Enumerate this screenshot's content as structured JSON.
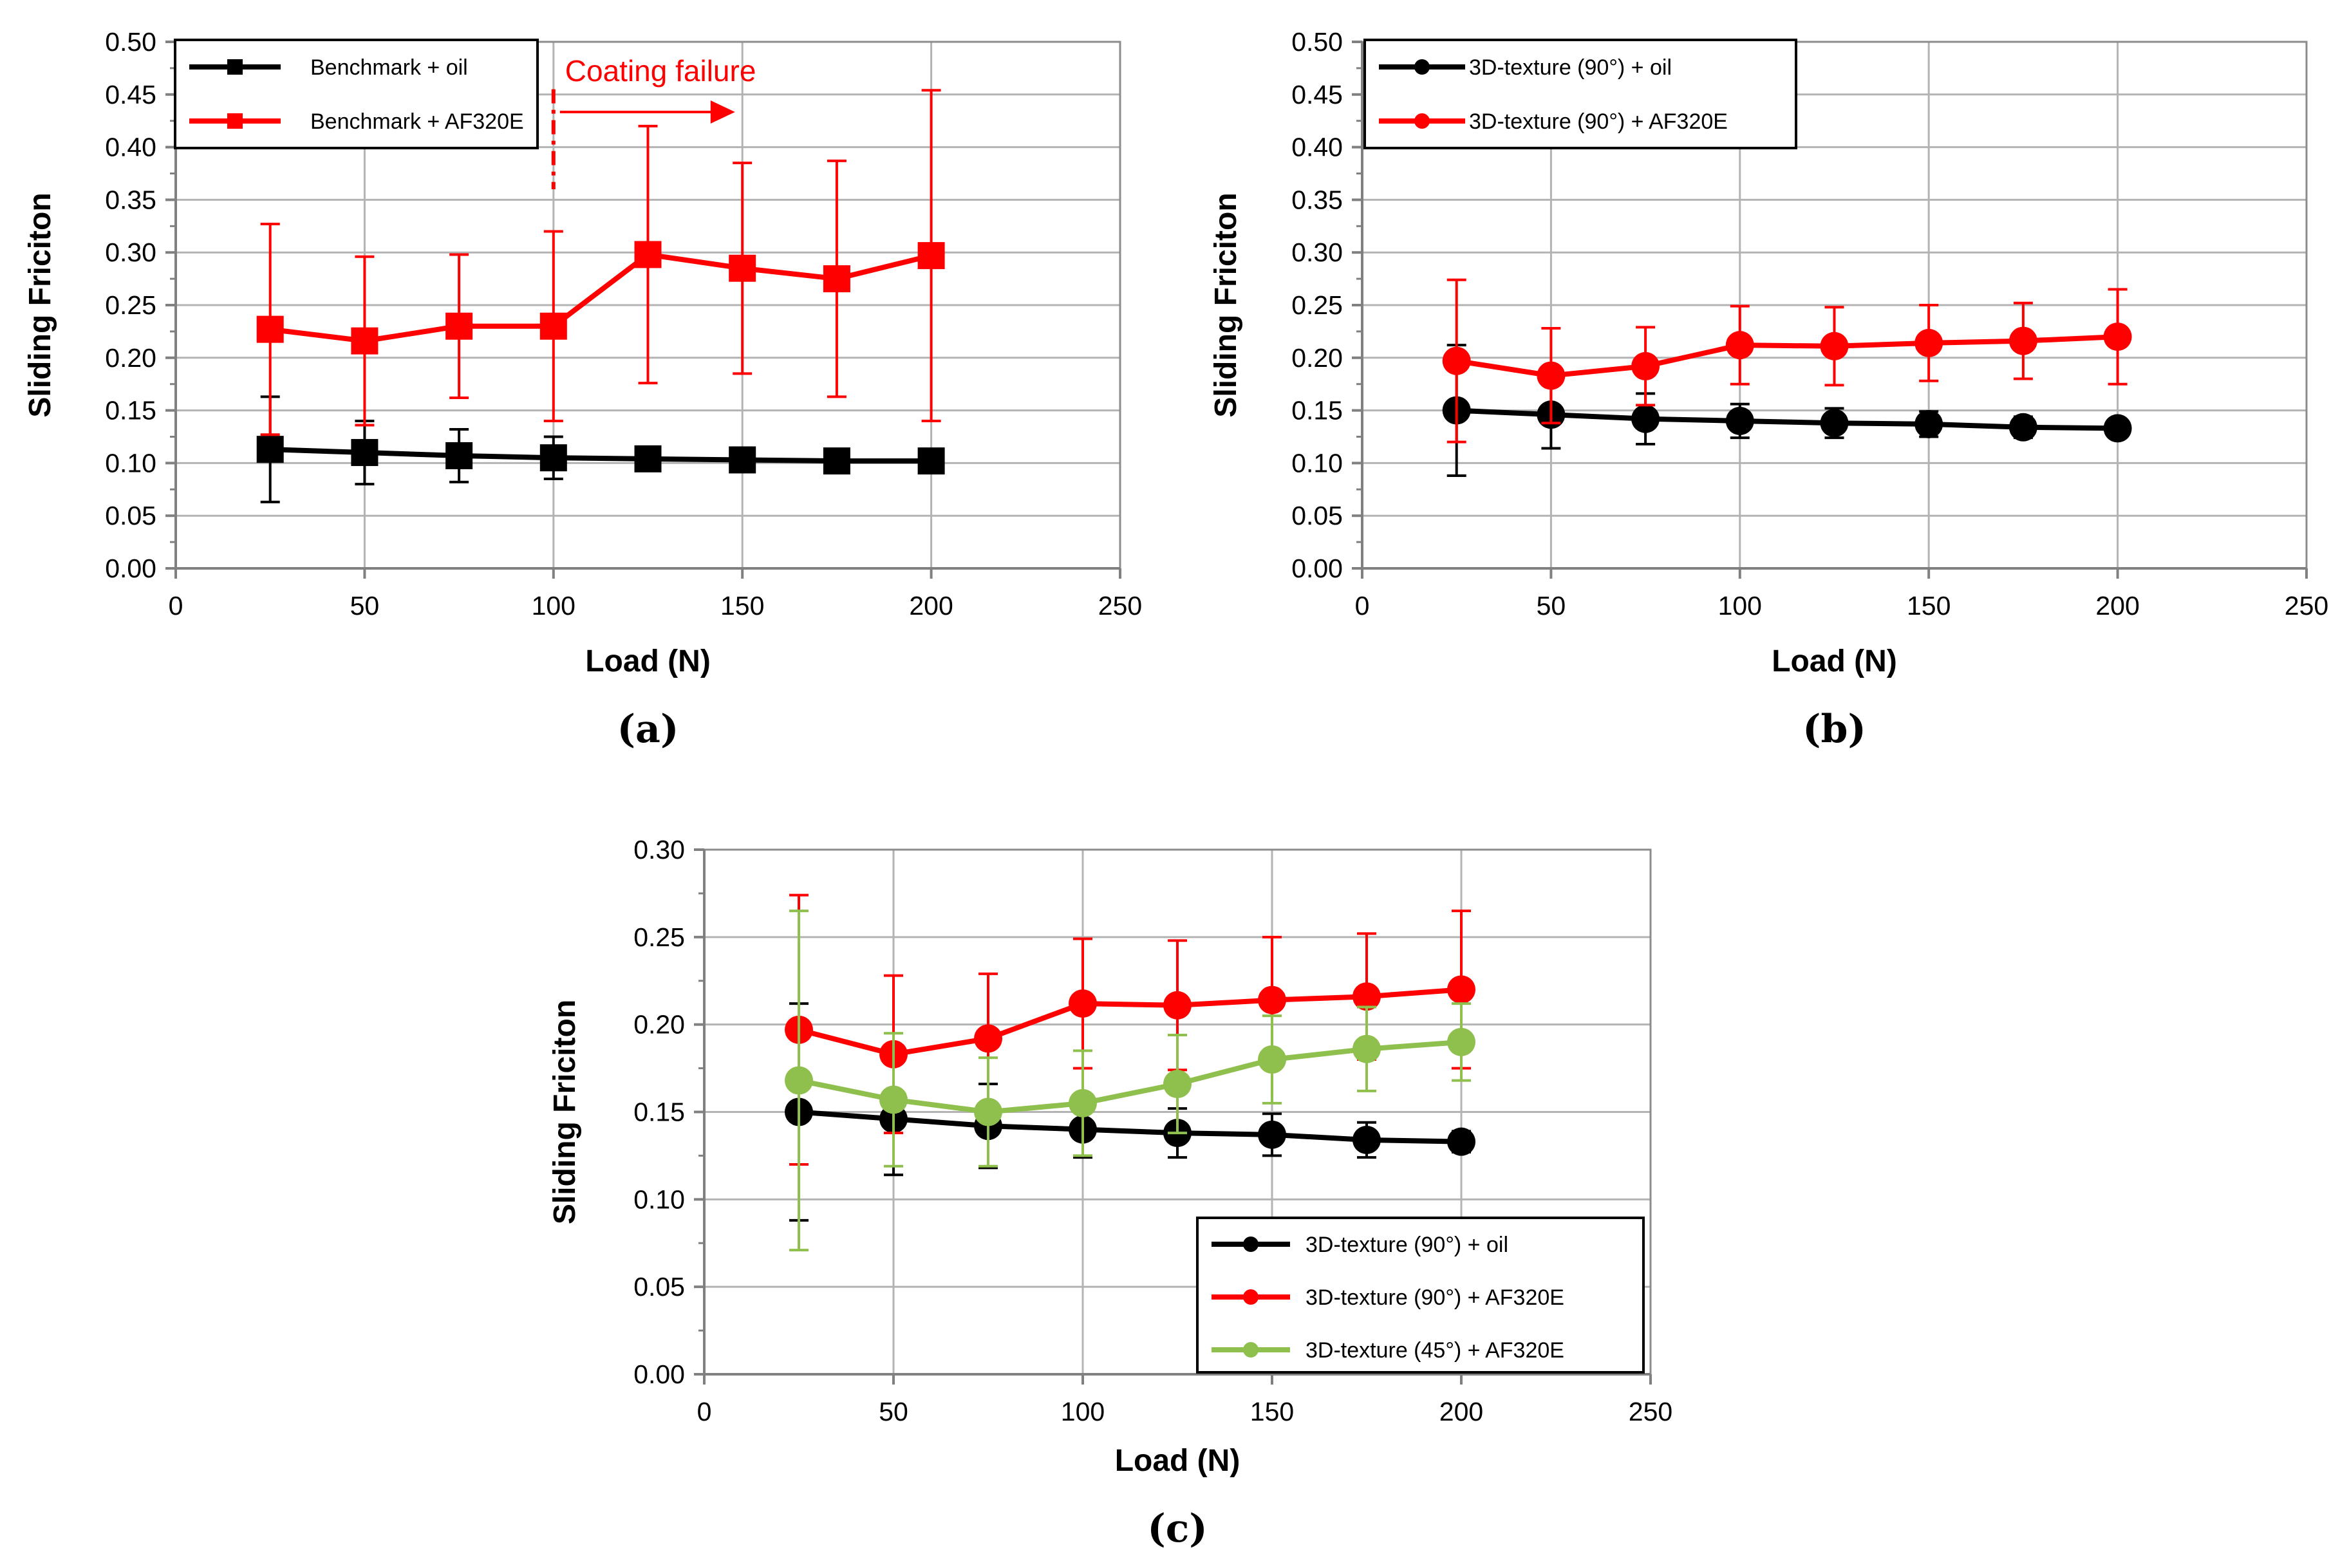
{
  "chart_data": [
    {
      "id": "a",
      "type": "line",
      "panel_label": "(a)",
      "xlabel": "Load (N)",
      "ylabel": "Sliding Friciton",
      "xlim": [
        0,
        250
      ],
      "ylim": [
        0,
        0.5
      ],
      "xticks": [
        0,
        50,
        100,
        150,
        200,
        250
      ],
      "yticks": [
        0.0,
        0.05,
        0.1,
        0.15,
        0.2,
        0.25,
        0.3,
        0.35,
        0.4,
        0.45,
        0.5
      ],
      "grid": true,
      "legend": "top-left",
      "annotation": {
        "text": "Coating failure",
        "x": 100
      },
      "x": [
        25,
        50,
        75,
        100,
        125,
        150,
        175,
        200
      ],
      "series": [
        {
          "name": "Benchmark + oil",
          "color": "#000000",
          "marker": "square",
          "values": [
            0.113,
            0.11,
            0.107,
            0.105,
            0.104,
            0.103,
            0.102,
            0.102
          ],
          "err": [
            0.05,
            0.03,
            0.025,
            0.02,
            0.01,
            0.01,
            0.01,
            0.005
          ]
        },
        {
          "name": "Benchmark + AF320E",
          "color": "#ff0000",
          "marker": "square",
          "values": [
            0.227,
            0.216,
            0.23,
            0.23,
            0.298,
            0.285,
            0.275,
            0.297
          ],
          "err": [
            0.1,
            0.08,
            0.068,
            0.09,
            0.122,
            0.1,
            0.112,
            0.157
          ]
        }
      ]
    },
    {
      "id": "b",
      "type": "line",
      "panel_label": "(b)",
      "xlabel": "Load (N)",
      "ylabel": "Sliding Friciton",
      "xlim": [
        0,
        250
      ],
      "ylim": [
        0,
        0.5
      ],
      "xticks": [
        0,
        50,
        100,
        150,
        200,
        250
      ],
      "yticks": [
        0.0,
        0.05,
        0.1,
        0.15,
        0.2,
        0.25,
        0.3,
        0.35,
        0.4,
        0.45,
        0.5
      ],
      "grid": true,
      "legend": "top-left",
      "x": [
        25,
        50,
        75,
        100,
        125,
        150,
        175,
        200
      ],
      "series": [
        {
          "name": "3D-texture (90°) + oil",
          "color": "#000000",
          "marker": "circle",
          "values": [
            0.15,
            0.146,
            0.142,
            0.14,
            0.138,
            0.137,
            0.134,
            0.133
          ],
          "err": [
            0.062,
            0.032,
            0.024,
            0.016,
            0.014,
            0.012,
            0.01,
            0.006
          ]
        },
        {
          "name": "3D-texture (90°) + AF320E",
          "color": "#ff0000",
          "marker": "circle",
          "values": [
            0.197,
            0.183,
            0.192,
            0.212,
            0.211,
            0.214,
            0.216,
            0.22
          ],
          "err": [
            0.077,
            0.045,
            0.037,
            0.037,
            0.037,
            0.036,
            0.036,
            0.045
          ]
        }
      ]
    },
    {
      "id": "c",
      "type": "line",
      "panel_label": "(c)",
      "xlabel": "Load (N)",
      "ylabel": "Sliding Friciton",
      "xlim": [
        0,
        250
      ],
      "ylim": [
        0,
        0.3
      ],
      "xticks": [
        0,
        50,
        100,
        150,
        200,
        250
      ],
      "yticks": [
        0.0,
        0.05,
        0.1,
        0.15,
        0.2,
        0.25,
        0.3
      ],
      "grid": true,
      "legend": "bottom-right",
      "x": [
        25,
        50,
        75,
        100,
        125,
        150,
        175,
        200
      ],
      "series": [
        {
          "name": "3D-texture (90°) + oil",
          "color": "#000000",
          "marker": "circle",
          "values": [
            0.15,
            0.146,
            0.142,
            0.14,
            0.138,
            0.137,
            0.134,
            0.133
          ],
          "err": [
            0.062,
            0.032,
            0.024,
            0.016,
            0.014,
            0.012,
            0.01,
            0.006
          ]
        },
        {
          "name": "3D-texture (90°) + AF320E",
          "color": "#ff0000",
          "marker": "circle",
          "values": [
            0.197,
            0.183,
            0.192,
            0.212,
            0.211,
            0.214,
            0.216,
            0.22
          ],
          "err": [
            0.077,
            0.045,
            0.037,
            0.037,
            0.037,
            0.036,
            0.036,
            0.045
          ]
        },
        {
          "name": "3D-texture (45°) + AF320E",
          "color": "#8fbf4d",
          "marker": "circle",
          "values": [
            0.168,
            0.157,
            0.15,
            0.155,
            0.166,
            0.18,
            0.186,
            0.19
          ],
          "err": [
            0.097,
            0.038,
            0.031,
            0.03,
            0.028,
            0.025,
            0.024,
            0.022
          ]
        }
      ]
    }
  ]
}
